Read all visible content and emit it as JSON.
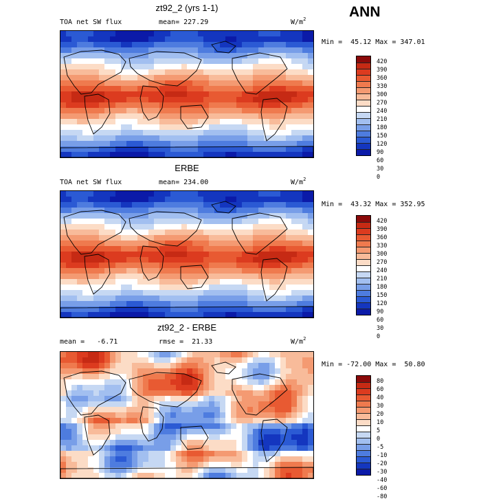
{
  "header": {
    "season": "ANN"
  },
  "panels": [
    {
      "id": "model",
      "title": "zt92_2 (yrs 1-1)",
      "left_label": "TOA net SW flux",
      "stat_label": "mean= 227.29",
      "unit": "W/m",
      "unit_sup": "2",
      "minmax": "Min =  45.12 Max = 347.01",
      "colorbar": {
        "labels": [
          "420",
          "390",
          "360",
          "330",
          "300",
          "270",
          "240",
          "210",
          "180",
          "150",
          "120",
          "90",
          "60",
          "30",
          "0"
        ],
        "colors": [
          "#8b0a0a",
          "#c62a14",
          "#dc3b1f",
          "#e85a32",
          "#ef7a4e",
          "#f49a72",
          "#f8bb9a",
          "#fcdcc6",
          "#ffffff",
          "#c6d8f3",
          "#a2bff0",
          "#789ee8",
          "#4e7cdf",
          "#2b5ad4",
          "#1436bf",
          "#0b1aa8"
        ]
      },
      "map_field": "sw"
    },
    {
      "id": "obs",
      "title": "ERBE",
      "left_label": "TOA net SW flux",
      "stat_label": "mean= 234.00",
      "unit": "W/m",
      "unit_sup": "2",
      "minmax": "Min =  43.32 Max = 352.95",
      "colorbar": {
        "labels": [
          "420",
          "390",
          "360",
          "330",
          "300",
          "270",
          "240",
          "210",
          "180",
          "150",
          "120",
          "90",
          "60",
          "30",
          "0"
        ],
        "colors": [
          "#8b0a0a",
          "#c62a14",
          "#dc3b1f",
          "#e85a32",
          "#ef7a4e",
          "#f49a72",
          "#f8bb9a",
          "#fcdcc6",
          "#ffffff",
          "#c6d8f3",
          "#a2bff0",
          "#789ee8",
          "#4e7cdf",
          "#2b5ad4",
          "#1436bf",
          "#0b1aa8"
        ]
      },
      "map_field": "sw"
    },
    {
      "id": "diff",
      "title": "zt92_2 - ERBE",
      "left_label": "mean =   -6.71",
      "stat_label": "rmse =  21.33",
      "unit": "W/m",
      "unit_sup": "2",
      "minmax": "Min = -72.00 Max =  50.80",
      "colorbar": {
        "labels": [
          "80",
          "60",
          "40",
          "30",
          "20",
          "10",
          "5",
          "0",
          "-5",
          "-10",
          "-20",
          "-30",
          "-40",
          "-60",
          "-80"
        ],
        "colors": [
          "#8b0a0a",
          "#c62a14",
          "#dc3b1f",
          "#e85a32",
          "#ef7a4e",
          "#f49a72",
          "#f8bb9a",
          "#fcdcc6",
          "#ffffff",
          "#c6d8f3",
          "#a2bff0",
          "#789ee8",
          "#4e7cdf",
          "#2b5ad4",
          "#1436bf",
          "#0b1aa8"
        ]
      },
      "map_field": "diff"
    }
  ]
}
